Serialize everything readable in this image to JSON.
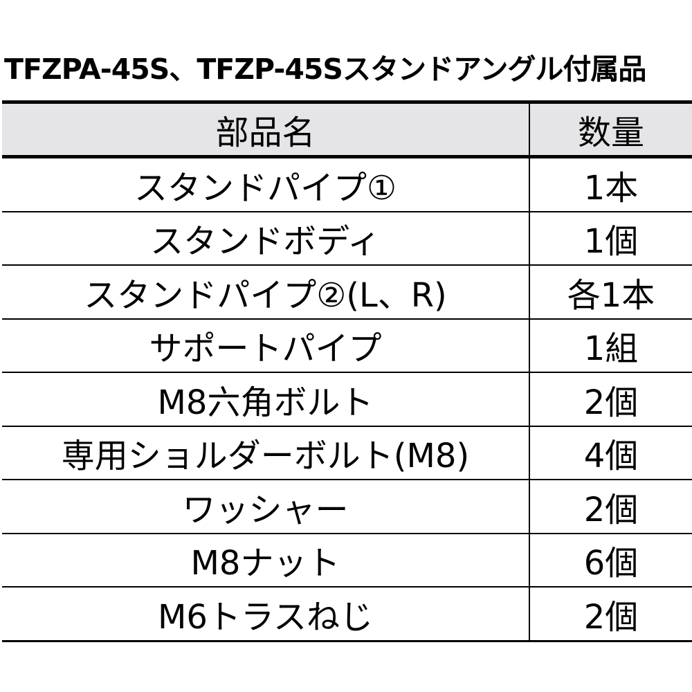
{
  "title": "TFZPA-45S、TFZP-45Sスタンドアングル付属品",
  "table": {
    "headers": [
      "部品名",
      "数量"
    ],
    "rows": [
      [
        "スタンドパイプ①",
        "1本"
      ],
      [
        "スタンドボディ",
        "1個"
      ],
      [
        "スタンドパイプ②(L、R)",
        "各1本"
      ],
      [
        "サポートパイプ",
        "1組"
      ],
      [
        "M8六角ボルト",
        "2個"
      ],
      [
        "専用ショルダーボルト(M8)",
        "4個"
      ],
      [
        "ワッシャー",
        "2個"
      ],
      [
        "M8ナット",
        "6個"
      ],
      [
        "M6トラスねじ",
        "2個"
      ]
    ]
  }
}
